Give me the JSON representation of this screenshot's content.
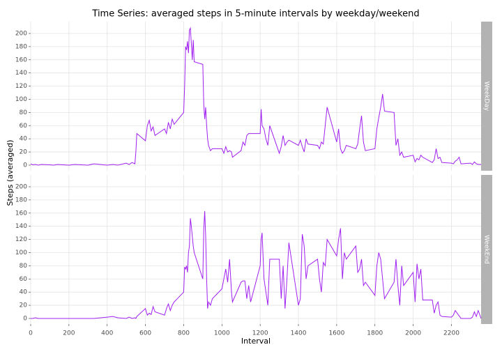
{
  "chart_data": {
    "type": "line",
    "title": "Time Series: averaged steps in 5-minute intervals by weekday/weekend",
    "x_label": "Interval",
    "y_label": "Steps (averaged)",
    "color": "#a020f0",
    "grid": true,
    "xlim": [
      0,
      2355
    ],
    "ylim": [
      -8.5,
      218
    ],
    "xticks": [
      0,
      200,
      400,
      600,
      800,
      1000,
      1200,
      1400,
      1600,
      1800,
      2000,
      2200
    ],
    "yticks": [
      0,
      20,
      40,
      60,
      80,
      100,
      120,
      140,
      160,
      180,
      200
    ],
    "x": [
      0,
      10,
      25,
      40,
      55,
      100,
      120,
      140,
      200,
      230,
      300,
      330,
      400,
      430,
      455,
      500,
      515,
      530,
      545,
      550,
      555,
      600,
      610,
      620,
      630,
      640,
      650,
      700,
      710,
      720,
      730,
      740,
      750,
      800,
      805,
      810,
      815,
      820,
      825,
      830,
      835,
      840,
      845,
      850,
      855,
      900,
      905,
      910,
      915,
      920,
      925,
      930,
      940,
      950,
      1000,
      1010,
      1020,
      1030,
      1040,
      1050,
      1055,
      1100,
      1110,
      1120,
      1130,
      1140,
      1150,
      1200,
      1205,
      1210,
      1220,
      1230,
      1240,
      1250,
      1300,
      1310,
      1320,
      1330,
      1340,
      1350,
      1400,
      1410,
      1420,
      1430,
      1440,
      1450,
      1500,
      1510,
      1520,
      1530,
      1540,
      1550,
      1600,
      1610,
      1620,
      1630,
      1640,
      1650,
      1700,
      1710,
      1720,
      1730,
      1740,
      1750,
      1800,
      1810,
      1820,
      1830,
      1840,
      1850,
      1900,
      1910,
      1920,
      1930,
      1940,
      1950,
      2000,
      2010,
      2020,
      2030,
      2040,
      2050,
      2100,
      2110,
      2120,
      2130,
      2140,
      2150,
      2200,
      2210,
      2220,
      2230,
      2240,
      2250,
      2300,
      2310,
      2320,
      2330,
      2340,
      2355
    ],
    "panels": [
      {
        "name": "WeekDay",
        "values": [
          2,
          0.5,
          1,
          0,
          1,
          0.5,
          0,
          1,
          0,
          1,
          0,
          2,
          0,
          1,
          0,
          3,
          1,
          4,
          2,
          20,
          48,
          37,
          60,
          68,
          52,
          58,
          45,
          55,
          48,
          65,
          55,
          70,
          62,
          80,
          120,
          180,
          175,
          188,
          170,
          205,
          208,
          185,
          160,
          190,
          157,
          153,
          92,
          70,
          88,
          60,
          40,
          30,
          22,
          25,
          25,
          18,
          28,
          20,
          22,
          20,
          12,
          22,
          35,
          30,
          45,
          48,
          48,
          48,
          85,
          60,
          55,
          40,
          30,
          60,
          18,
          28,
          45,
          30,
          35,
          38,
          30,
          38,
          28,
          20,
          40,
          32,
          30,
          25,
          35,
          32,
          60,
          88,
          35,
          55,
          25,
          18,
          22,
          30,
          25,
          32,
          55,
          75,
          35,
          22,
          25,
          55,
          72,
          88,
          108,
          82,
          80,
          30,
          40,
          15,
          20,
          12,
          15,
          5,
          10,
          8,
          15,
          12,
          4,
          8,
          25,
          10,
          12,
          4,
          3,
          2,
          6,
          8,
          12,
          2,
          3,
          1,
          5,
          2,
          1,
          1
        ]
      },
      {
        "name": "WeekEnd",
        "values": [
          0,
          0,
          1,
          0,
          0,
          0,
          0,
          0,
          0,
          0,
          0,
          0,
          2,
          3,
          1,
          0,
          2,
          0,
          1,
          0,
          3,
          15,
          5,
          8,
          6,
          18,
          10,
          5,
          15,
          22,
          12,
          20,
          25,
          40,
          78,
          75,
          80,
          70,
          100,
          110,
          152,
          140,
          125,
          110,
          100,
          60,
          135,
          163,
          125,
          60,
          15,
          25,
          20,
          30,
          45,
          60,
          75,
          55,
          90,
          40,
          25,
          55,
          57,
          57,
          30,
          50,
          25,
          80,
          120,
          130,
          60,
          40,
          20,
          90,
          90,
          30,
          80,
          15,
          60,
          115,
          20,
          30,
          128,
          110,
          60,
          80,
          90,
          60,
          40,
          85,
          80,
          120,
          95,
          120,
          137,
          60,
          100,
          90,
          110,
          70,
          75,
          90,
          50,
          55,
          35,
          80,
          100,
          90,
          60,
          30,
          55,
          90,
          50,
          20,
          80,
          50,
          70,
          25,
          83,
          60,
          75,
          28,
          28,
          8,
          20,
          25,
          5,
          3,
          2,
          5,
          12,
          8,
          4,
          0,
          0,
          2,
          10,
          3,
          12,
          0
        ]
      }
    ]
  }
}
